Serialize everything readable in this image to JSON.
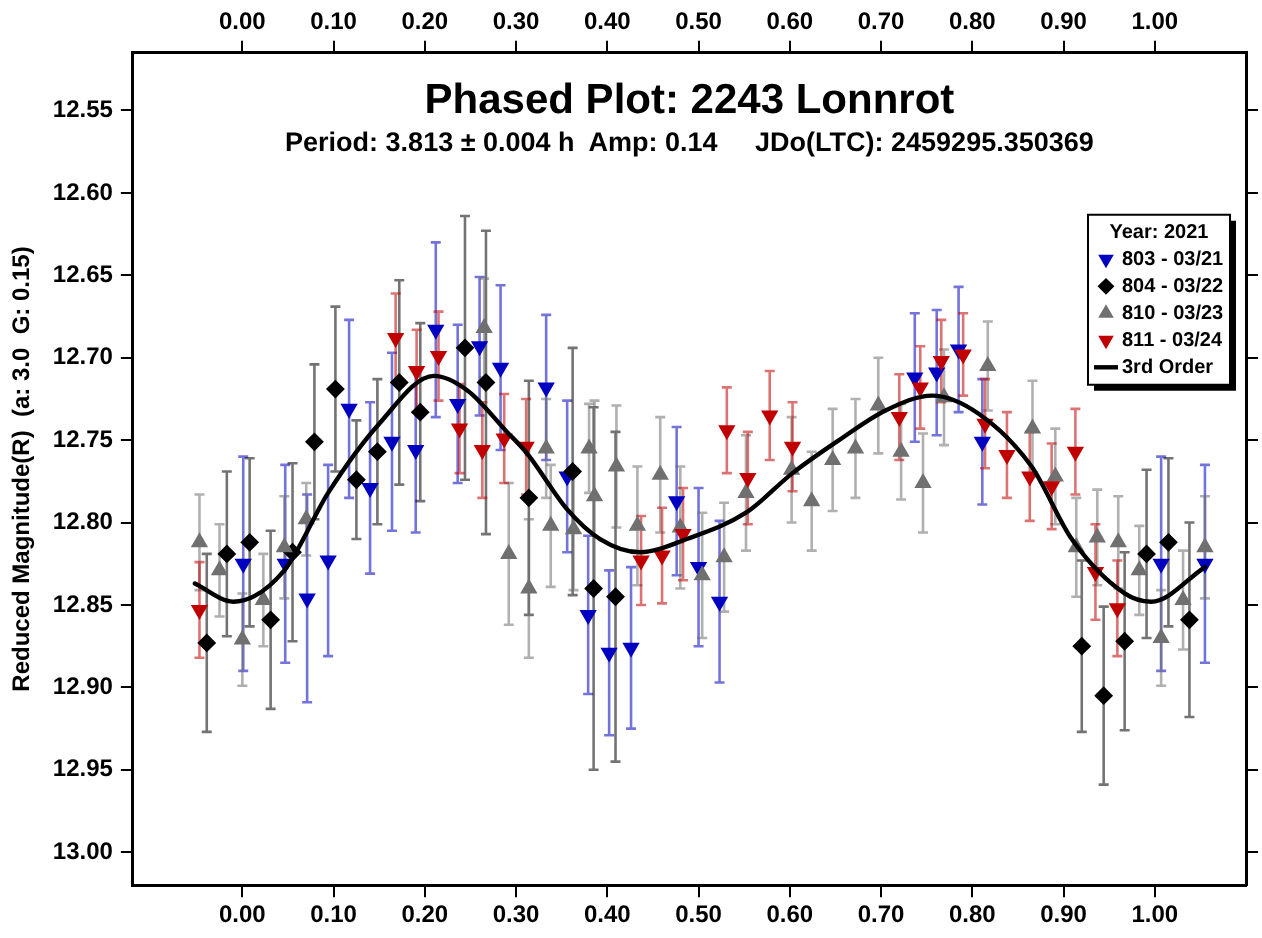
{
  "chart_data": {
    "type": "scatter",
    "title": "Phased Plot: 2243 Lonnrot",
    "subtitle": "Period: 3.813 ± 0.004 h  Amp: 0.14     JDo(LTC): 2459295.350369",
    "ylabel": "Reduced Magnitude(R)  (a: 3.0  G: 0.15)",
    "legend_title": "Year: 2021",
    "legend": "top right",
    "grid": false,
    "xlim": [
      -0.12,
      1.1
    ],
    "xticks": [
      {
        "value": 0,
        "label": "0.00"
      },
      {
        "value": 0.1,
        "label": "0.10"
      },
      {
        "value": 0.2,
        "label": "0.20"
      },
      {
        "value": 0.3,
        "label": "0.30"
      },
      {
        "value": 0.4,
        "label": "0.40"
      },
      {
        "value": 0.5,
        "label": "0.50"
      },
      {
        "value": 0.6,
        "label": "0.60"
      },
      {
        "value": 0.7,
        "label": "0.70"
      },
      {
        "value": 0.8,
        "label": "0.80"
      },
      {
        "value": 0.9,
        "label": "0.90"
      },
      {
        "value": 1,
        "label": "1.00"
      }
    ],
    "x2lim": [
      -0.12,
      1.1
    ],
    "x2ticks": [
      {
        "value": 0,
        "label": "0.00"
      },
      {
        "value": 0.1,
        "label": "0.10"
      },
      {
        "value": 0.2,
        "label": "0.20"
      },
      {
        "value": 0.3,
        "label": "0.30"
      },
      {
        "value": 0.4,
        "label": "0.40"
      },
      {
        "value": 0.5,
        "label": "0.50"
      },
      {
        "value": 0.6,
        "label": "0.60"
      },
      {
        "value": 0.7,
        "label": "0.70"
      },
      {
        "value": 0.8,
        "label": "0.80"
      },
      {
        "value": 0.9,
        "label": "0.90"
      },
      {
        "value": 1,
        "label": "1.00"
      }
    ],
    "ylim": [
      13.02,
      12.515
    ],
    "yticks": [
      {
        "value": 12.55,
        "label": "12.55"
      },
      {
        "value": 12.6,
        "label": "12.60"
      },
      {
        "value": 12.65,
        "label": "12.65"
      },
      {
        "value": 12.7,
        "label": "12.70"
      },
      {
        "value": 12.75,
        "label": "12.75"
      },
      {
        "value": 12.8,
        "label": "12.80"
      },
      {
        "value": 12.85,
        "label": "12.85"
      },
      {
        "value": 12.9,
        "label": "12.90"
      },
      {
        "value": 12.95,
        "label": "12.95"
      },
      {
        "value": 13,
        "label": "13.00"
      }
    ],
    "series": [
      {
        "name": "803 - 03/21",
        "marker": "triangle-down",
        "color": "#0000c0",
        "x": [
          0.001,
          0.047,
          0.071,
          0.094,
          0.117,
          0.14,
          0.164,
          0.19,
          0.212,
          0.236,
          0.26,
          0.283,
          0.333,
          0.356,
          0.379,
          0.402,
          0.426,
          0.476,
          0.5,
          0.523,
          0.737,
          0.761,
          0.785,
          0.811,
          1.007,
          1.055
        ],
        "values": [
          12.825,
          12.825,
          12.846,
          12.823,
          12.731,
          12.779,
          12.751,
          12.756,
          12.683,
          12.728,
          12.693,
          12.706,
          12.718,
          12.772,
          12.856,
          12.879,
          12.876,
          12.787,
          12.827,
          12.848,
          12.712,
          12.709,
          12.695,
          12.751,
          12.825,
          12.825
        ],
        "errors": [
          0.065,
          0.06,
          0.063,
          0.058,
          0.054,
          0.052,
          0.054,
          0.05,
          0.053,
          0.048,
          0.042,
          0.05,
          0.044,
          0.046,
          0.048,
          0.05,
          0.049,
          0.045,
          0.048,
          0.049,
          0.039,
          0.038,
          0.038,
          0.038,
          0.065,
          0.06
        ]
      },
      {
        "name": "804 - 03/22",
        "marker": "diamond",
        "color": "#000000",
        "x": [
          -0.039,
          -0.017,
          0.008,
          0.031,
          0.055,
          0.079,
          0.102,
          0.125,
          0.148,
          0.172,
          0.195,
          0.244,
          0.267,
          0.314,
          0.362,
          0.385,
          0.409,
          0.92,
          0.944,
          0.967,
          0.991,
          1.015,
          1.038
        ],
        "values": [
          12.873,
          12.819,
          12.812,
          12.859,
          12.818,
          12.751,
          12.719,
          12.774,
          12.757,
          12.715,
          12.733,
          12.694,
          12.715,
          12.785,
          12.769,
          12.84,
          12.845,
          12.875,
          12.905,
          12.872,
          12.819,
          12.812,
          12.859
        ],
        "errors": [
          0.054,
          0.05,
          0.051,
          0.054,
          0.054,
          0.047,
          0.05,
          0.036,
          0.044,
          0.062,
          0.054,
          0.08,
          0.092,
          0.071,
          0.075,
          0.11,
          0.1,
          0.052,
          0.054,
          0.054,
          0.051,
          0.051,
          0.059
        ]
      },
      {
        "name": "810 - 03/23",
        "marker": "triangle",
        "color": "#707070",
        "x": [
          -0.047,
          -0.025,
          0.0,
          0.023,
          0.046,
          0.07,
          0.265,
          0.292,
          0.314,
          0.333,
          0.338,
          0.363,
          0.38,
          0.386,
          0.41,
          0.433,
          0.458,
          0.48,
          0.504,
          0.528,
          0.552,
          0.602,
          0.624,
          0.647,
          0.672,
          0.697,
          0.722,
          0.746,
          0.769,
          0.817,
          0.866,
          0.891,
          0.914,
          0.937,
          0.96,
          0.983,
          1.007,
          1.031,
          1.055
        ],
        "values": [
          12.812,
          12.829,
          12.871,
          12.847,
          12.815,
          12.798,
          12.682,
          12.819,
          12.84,
          12.755,
          12.802,
          12.804,
          12.755,
          12.784,
          12.766,
          12.802,
          12.771,
          12.803,
          12.832,
          12.821,
          12.782,
          12.768,
          12.787,
          12.762,
          12.755,
          12.729,
          12.757,
          12.776,
          12.724,
          12.705,
          12.743,
          12.772,
          12.815,
          12.809,
          12.812,
          12.829,
          12.87,
          12.847,
          12.815
        ],
        "errors": [
          0.029,
          0.028,
          0.028,
          0.028,
          0.031,
          0.022,
          0.03,
          0.043,
          0.042,
          0.03,
          0.037,
          0.037,
          0.027,
          0.058,
          0.037,
          0.036,
          0.035,
          0.037,
          0.038,
          0.033,
          0.035,
          0.032,
          0.03,
          0.031,
          0.03,
          0.029,
          0.029,
          0.03,
          0.029,
          0.027,
          0.029,
          0.029,
          0.03,
          0.029,
          0.028,
          0.027,
          0.029,
          0.03,
          0.031
        ]
      },
      {
        "name": "811 - 03/24",
        "marker": "triangle-down",
        "color": "#c00000",
        "x": [
          -0.047,
          0.168,
          0.191,
          0.215,
          0.238,
          0.263,
          0.287,
          0.311,
          0.437,
          0.46,
          0.483,
          0.531,
          0.554,
          0.578,
          0.603,
          0.72,
          0.743,
          0.766,
          0.79,
          0.814,
          0.838,
          0.863,
          0.887,
          0.913,
          0.935,
          0.959
        ],
        "values": [
          12.853,
          12.688,
          12.708,
          12.699,
          12.743,
          12.756,
          12.749,
          12.754,
          12.823,
          12.82,
          12.807,
          12.744,
          12.773,
          12.735,
          12.754,
          12.736,
          12.718,
          12.702,
          12.698,
          12.74,
          12.759,
          12.772,
          12.778,
          12.757,
          12.83,
          12.852
        ],
        "errors": [
          0.029,
          0.027,
          0.025,
          0.027,
          0.027,
          0.029,
          0.027,
          0.029,
          0.027,
          0.029,
          0.028,
          0.026,
          0.028,
          0.027,
          0.027,
          0.026,
          0.025,
          0.025,
          0.025,
          0.027,
          0.026,
          0.027,
          0.026,
          0.026,
          0.029,
          0.029
        ]
      },
      {
        "name": "3rd Order",
        "type": "line",
        "marker": "none",
        "color": "#000000",
        "x": [
          -0.052,
          -0.01,
          0.046,
          0.094,
          0.15,
          0.21,
          0.247,
          0.29,
          0.312,
          0.356,
          0.392,
          0.436,
          0.487,
          0.552,
          0.603,
          0.654,
          0.705,
          0.756,
          0.807,
          0.865,
          0.909,
          0.967,
          0.996,
          1.055
        ],
        "values": [
          12.837,
          12.848,
          12.829,
          12.782,
          12.74,
          12.711,
          12.72,
          12.745,
          12.758,
          12.792,
          12.81,
          12.818,
          12.81,
          12.794,
          12.77,
          12.75,
          12.732,
          12.723,
          12.734,
          12.766,
          12.81,
          12.843,
          12.848,
          12.827
        ]
      }
    ]
  }
}
